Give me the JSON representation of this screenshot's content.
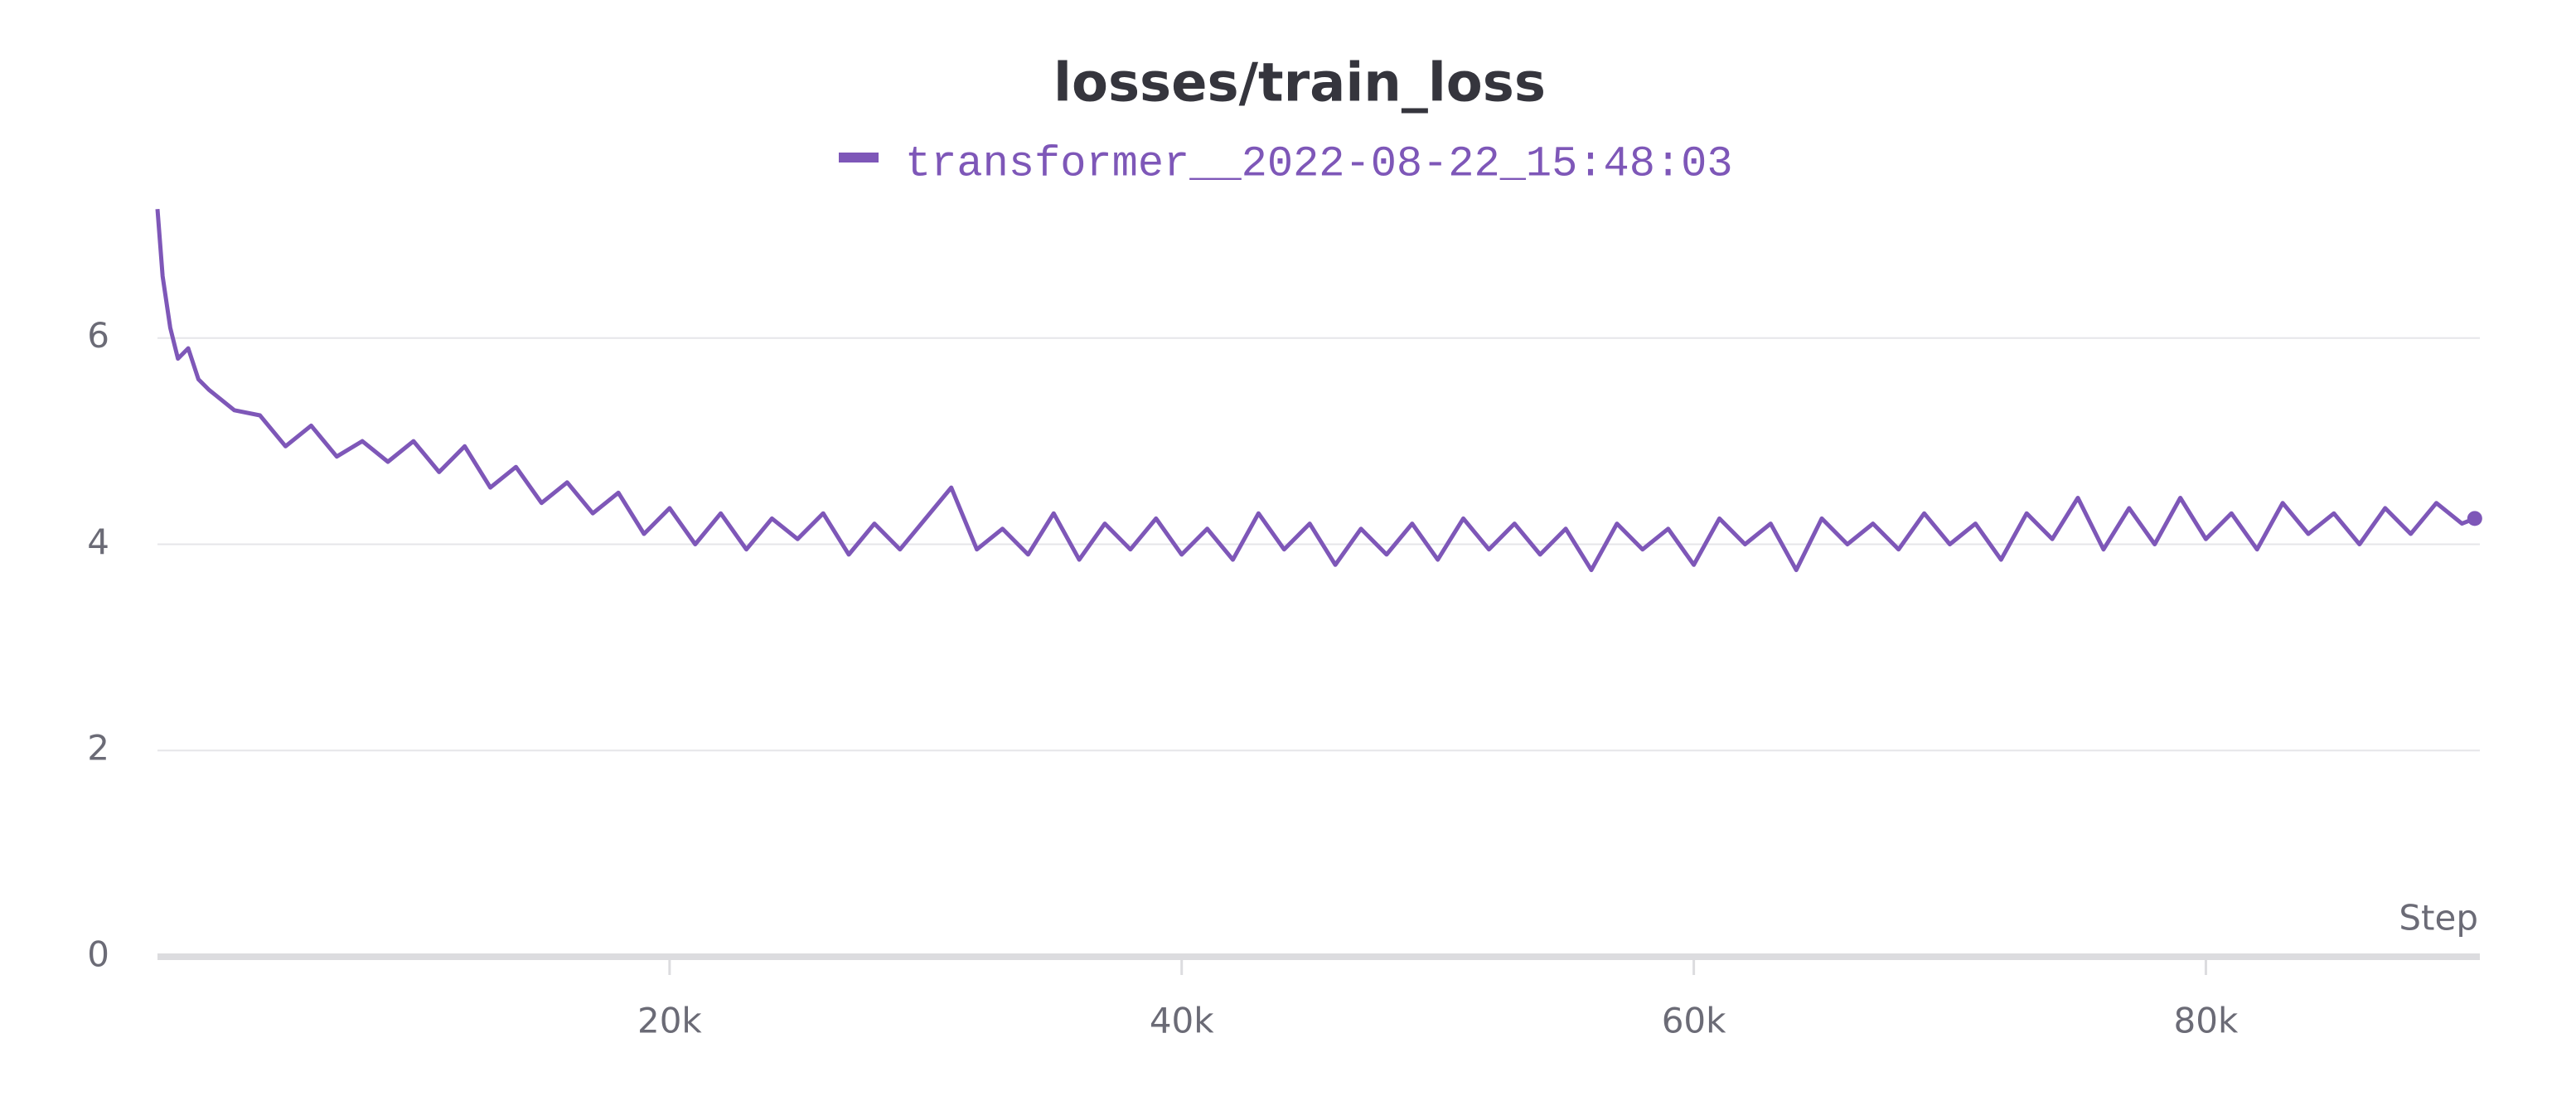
{
  "chart_data": {
    "type": "line",
    "title": "losses/train_loss",
    "xlabel": "Step",
    "x": [
      0,
      200,
      500,
      800,
      1200,
      1600,
      2000,
      3000,
      4000,
      5000,
      6000,
      7000,
      8000,
      9000,
      10000,
      11000,
      12000,
      13000,
      14000,
      15000,
      16000,
      17000,
      18000,
      19000,
      20000,
      21000,
      22000,
      23000,
      24000,
      25000,
      26000,
      27000,
      28000,
      29000,
      30000,
      31000,
      32000,
      33000,
      34000,
      35000,
      36000,
      37000,
      38000,
      39000,
      40000,
      41000,
      42000,
      43000,
      44000,
      45000,
      46000,
      47000,
      48000,
      49000,
      50000,
      51000,
      52000,
      53000,
      54000,
      55000,
      56000,
      57000,
      58000,
      59000,
      60000,
      61000,
      62000,
      63000,
      64000,
      65000,
      66000,
      67000,
      68000,
      69000,
      70000,
      71000,
      72000,
      73000,
      74000,
      75000,
      76000,
      77000,
      78000,
      79000,
      80000,
      81000,
      82000,
      83000,
      84000,
      85000,
      86000,
      87000,
      88000,
      89000,
      90000,
      90500
    ],
    "series": [
      {
        "name": "transformer__2022-08-22_15:48:03",
        "color": "#7e57b8",
        "values": [
          7.25,
          6.6,
          6.1,
          5.8,
          5.9,
          5.6,
          5.5,
          5.3,
          5.25,
          4.95,
          5.15,
          4.85,
          5.0,
          4.8,
          5.0,
          4.7,
          4.95,
          4.55,
          4.75,
          4.4,
          4.6,
          4.3,
          4.5,
          4.1,
          4.35,
          4.0,
          4.3,
          3.95,
          4.25,
          4.05,
          4.3,
          3.9,
          4.2,
          3.95,
          4.25,
          4.55,
          3.95,
          4.15,
          3.9,
          4.3,
          3.85,
          4.2,
          3.95,
          4.25,
          3.9,
          4.15,
          3.85,
          4.3,
          3.95,
          4.2,
          3.8,
          4.15,
          3.9,
          4.2,
          3.85,
          4.25,
          3.95,
          4.2,
          3.9,
          4.15,
          3.75,
          4.2,
          3.95,
          4.15,
          3.8,
          4.25,
          4.0,
          4.2,
          3.75,
          4.25,
          4.0,
          4.2,
          3.95,
          4.3,
          4.0,
          4.2,
          3.85,
          4.3,
          4.05,
          4.45,
          3.95,
          4.35,
          4.0,
          4.45,
          4.05,
          4.3,
          3.95,
          4.4,
          4.1,
          4.3,
          4.0,
          4.35,
          4.1,
          4.4,
          4.2,
          4.25
        ]
      }
    ],
    "xlim": [
      0,
      90700
    ],
    "xticks": [
      {
        "value": 20000,
        "label": "20k"
      },
      {
        "value": 40000,
        "label": "40k"
      },
      {
        "value": 60000,
        "label": "60k"
      },
      {
        "value": 80000,
        "label": "80k"
      }
    ],
    "ylim": [
      0,
      7.3
    ],
    "yticks": [
      0,
      2,
      4,
      6
    ],
    "grid": true
  }
}
